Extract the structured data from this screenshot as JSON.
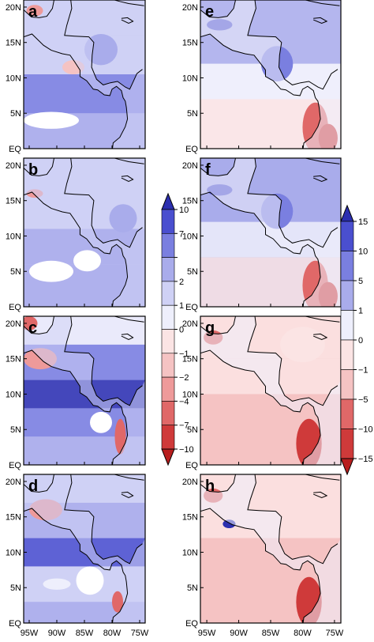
{
  "figure": {
    "panels": [
      {
        "label": "a",
        "column": "left",
        "row": 0
      },
      {
        "label": "b",
        "column": "left",
        "row": 1
      },
      {
        "label": "c",
        "column": "left",
        "row": 2
      },
      {
        "label": "d",
        "column": "left",
        "row": 3
      },
      {
        "label": "e",
        "column": "right",
        "row": 0
      },
      {
        "label": "f",
        "column": "right",
        "row": 1
      },
      {
        "label": "g",
        "column": "right",
        "row": 2
      },
      {
        "label": "h",
        "column": "right",
        "row": 3
      }
    ],
    "lat_ticks": [
      "20N",
      "15N",
      "10N",
      "5N",
      "EQ"
    ],
    "lon_ticks": [
      "95W",
      "90W",
      "85W",
      "80W",
      "75W"
    ]
  },
  "chart_data": [
    {
      "type": "heatmap",
      "panels": [
        "a",
        "b",
        "c",
        "d"
      ],
      "x": [
        -95,
        -90,
        -85,
        -80,
        -75
      ],
      "y": [
        0,
        5,
        10,
        15,
        20
      ],
      "xtick_labels": [
        "95W",
        "90W",
        "85W",
        "80W",
        "75W"
      ],
      "ytick_labels": [
        "EQ",
        "5N",
        "10N",
        "15N",
        "20N"
      ],
      "xlim": [
        -96,
        -74
      ],
      "ylim": [
        0,
        21
      ],
      "colorbar": {
        "levels": [
          10,
          7,
          4,
          2,
          1,
          0,
          -1,
          -2,
          -4,
          -7,
          -10
        ],
        "labels": [
          "10",
          "7",
          "",
          "2",
          "1",
          "0",
          "−1",
          "−2",
          "−4",
          "−7",
          "−10"
        ],
        "colors": [
          "#2c2fb0",
          "#4a4fcf",
          "#7a7fe0",
          "#a9aceb",
          "#cfd1f5",
          "#eeeffc",
          "#fbe4e4",
          "#f5c3c3",
          "#ee9a9a",
          "#e06868",
          "#cf3a3a",
          "#b81e1e"
        ]
      }
    },
    {
      "type": "heatmap",
      "panels": [
        "e",
        "f",
        "g",
        "h"
      ],
      "x": [
        -95,
        -90,
        -85,
        -80,
        -75
      ],
      "y": [
        0,
        5,
        10,
        15,
        20
      ],
      "xtick_labels": [
        "95W",
        "90W",
        "85W",
        "80W",
        "75W"
      ],
      "ytick_labels": [
        "EQ",
        "5N",
        "10N",
        "15N",
        "20N"
      ],
      "xlim": [
        -96,
        -74
      ],
      "ylim": [
        0,
        21
      ],
      "colorbar": {
        "levels": [
          15,
          10,
          5,
          1,
          0,
          -1,
          -5,
          -10,
          -15
        ],
        "labels": [
          "15",
          "10",
          "5",
          "1",
          "0",
          "−1",
          "−5",
          "−10",
          "−15"
        ],
        "colors": [
          "#2c2fb0",
          "#4a4fcf",
          "#7a7fe0",
          "#a9aceb",
          "#eeeffc",
          "#fbe4e4",
          "#f5c3c3",
          "#e06868",
          "#cf3a3a",
          "#b81e1e"
        ]
      }
    }
  ]
}
